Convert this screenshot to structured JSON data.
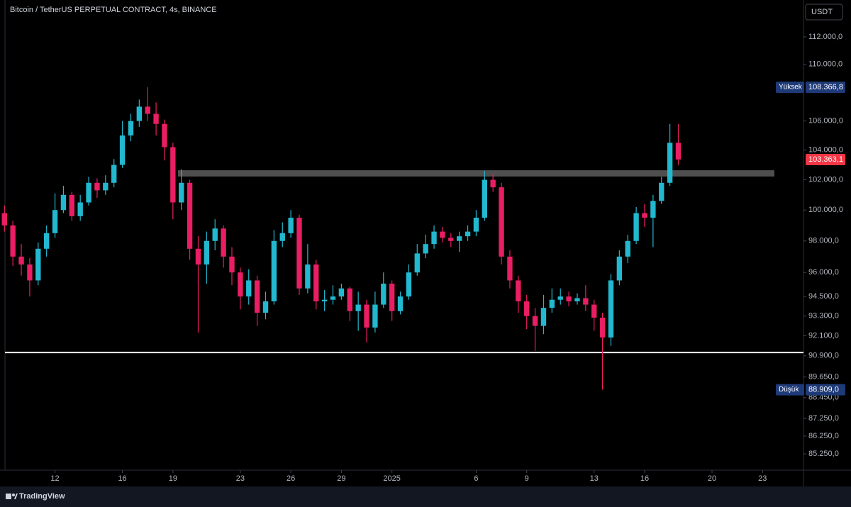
{
  "chart_data": {
    "type": "candlestick",
    "title": "Bitcoin / TetherUS PERPETUAL CONTRACT, 4s, BINANCE",
    "currency": "USDT",
    "brand": "TradingView",
    "log_scale": true,
    "up_color": "#22b8cf",
    "down_color": "#e91e63",
    "ylim": [
      84350,
      114736
    ],
    "yticks": [
      {
        "value": 112000,
        "label": "112.000,0"
      },
      {
        "value": 110000,
        "label": "110.000,0"
      },
      {
        "value": 106000,
        "label": "106.000,0"
      },
      {
        "value": 104000,
        "label": "104.000,0"
      },
      {
        "value": 102000,
        "label": "102.000,0"
      },
      {
        "value": 100000,
        "label": "100.000,0"
      },
      {
        "value": 98000,
        "label": "98.000,0"
      },
      {
        "value": 96000,
        "label": "96.000,0"
      },
      {
        "value": 94500,
        "label": "94.500,0"
      },
      {
        "value": 93300,
        "label": "93.300,0"
      },
      {
        "value": 92100,
        "label": "92.100,0"
      },
      {
        "value": 90900,
        "label": "90.900,0"
      },
      {
        "value": 89650,
        "label": "89.650,0"
      },
      {
        "value": 88450,
        "label": "88.450,0"
      },
      {
        "value": 87250,
        "label": "87.250,0"
      },
      {
        "value": 86250,
        "label": "86.250,0"
      },
      {
        "value": 85250,
        "label": "85.250,0"
      }
    ],
    "xlim": [
      -2.97,
      44.43
    ],
    "xticks": [
      {
        "value": 0,
        "label": "12"
      },
      {
        "value": 4,
        "label": "16"
      },
      {
        "value": 7,
        "label": "19"
      },
      {
        "value": 11,
        "label": "23"
      },
      {
        "value": 14,
        "label": "26"
      },
      {
        "value": 17,
        "label": "29"
      },
      {
        "value": 20,
        "label": "2025"
      },
      {
        "value": 25,
        "label": "6"
      },
      {
        "value": 28,
        "label": "9"
      },
      {
        "value": 32,
        "label": "13"
      },
      {
        "value": 35,
        "label": "16"
      },
      {
        "value": 39,
        "label": "20"
      },
      {
        "value": 42,
        "label": "23"
      }
    ],
    "x": [
      -3,
      -2.5,
      -2,
      -1.5,
      -1,
      -0.5,
      0,
      0.5,
      1,
      1.5,
      2,
      2.5,
      3,
      3.5,
      4,
      4.5,
      5,
      5.5,
      6,
      6.5,
      7,
      7.5,
      8,
      8.5,
      9,
      9.5,
      10,
      10.5,
      11,
      11.5,
      12,
      12.5,
      13,
      13.5,
      14,
      14.5,
      15,
      15.5,
      16,
      16.5,
      17,
      17.5,
      18,
      18.5,
      19,
      19.5,
      20,
      20.5,
      21,
      21.5,
      22,
      22.5,
      23,
      23.5,
      24,
      24.5,
      25,
      25.5,
      26,
      26.5,
      27,
      27.5,
      28,
      28.5,
      29,
      29.5,
      30,
      30.5,
      31,
      31.5,
      32,
      32.5,
      33,
      33.5,
      34,
      34.5,
      35,
      35.5,
      36,
      36.5,
      37
    ],
    "open": [
      99800,
      99000,
      97000,
      96500,
      95500,
      97500,
      98500,
      100000,
      101000,
      99600,
      100500,
      101800,
      101300,
      101800,
      103000,
      105000,
      106000,
      107000,
      106500,
      105800,
      104200,
      100500,
      101800,
      97500,
      96500,
      98000,
      98800,
      97000,
      96000,
      94500,
      95500,
      93500,
      94200,
      98000,
      98500,
      99500,
      95000,
      96500,
      94200,
      94300,
      94500,
      95000,
      93600,
      94000,
      92600,
      94000,
      95300,
      93600,
      94500,
      96000,
      97200,
      97800,
      98600,
      98200,
      98000,
      98300,
      98600,
      99500,
      102000,
      101500,
      97000,
      95500,
      94200,
      93300,
      92700,
      93800,
      94300,
      94500,
      94200,
      94400,
      94000,
      93200,
      92000,
      95500,
      97000,
      98000,
      99800,
      99500,
      100600,
      101800,
      104500
    ],
    "high": [
      100300,
      99300,
      97800,
      96900,
      97900,
      99000,
      101100,
      101600,
      101200,
      101000,
      102200,
      102100,
      102300,
      103400,
      106000,
      106500,
      107500,
      108366.8,
      107300,
      106100,
      104500,
      102700,
      102000,
      98300,
      98600,
      99400,
      99000,
      97600,
      96300,
      96200,
      95800,
      94800,
      98700,
      99200,
      100000,
      99700,
      97800,
      96800,
      94900,
      95200,
      95300,
      95100,
      94800,
      94300,
      94800,
      96000,
      95500,
      94800,
      96500,
      97800,
      98400,
      99000,
      98900,
      98500,
      98600,
      99000,
      100000,
      102600,
      102400,
      101800,
      97400,
      95800,
      94600,
      93800,
      94600,
      95000,
      95000,
      94800,
      94700,
      95200,
      94300,
      93500,
      95900,
      97400,
      98400,
      100200,
      100400,
      101000,
      102200,
      105800,
      105800
    ],
    "low": [
      98600,
      96400,
      95800,
      94500,
      95200,
      97000,
      98200,
      99800,
      99300,
      99300,
      100300,
      100800,
      101000,
      101500,
      102800,
      104600,
      105600,
      106000,
      105000,
      103300,
      99400,
      100000,
      96800,
      92300,
      95300,
      97400,
      96300,
      95200,
      93700,
      94000,
      92700,
      93100,
      94000,
      97600,
      98200,
      94600,
      94700,
      93700,
      93600,
      94000,
      94300,
      93000,
      92400,
      91700,
      92300,
      93800,
      93000,
      93400,
      94300,
      95800,
      96900,
      97500,
      97900,
      97600,
      97300,
      98000,
      98300,
      99300,
      101200,
      96500,
      95000,
      93500,
      92500,
      91200,
      92200,
      93500,
      94000,
      93900,
      94000,
      93600,
      92400,
      88909,
      91500,
      95200,
      96600,
      97800,
      98900,
      97600,
      100400,
      101600,
      103000
    ],
    "close": [
      99000,
      97000,
      96500,
      95500,
      97500,
      98500,
      100000,
      101000,
      99600,
      100500,
      101800,
      101300,
      101800,
      103000,
      105000,
      106000,
      107000,
      106500,
      105800,
      104200,
      100500,
      101800,
      97500,
      96500,
      98000,
      98800,
      97000,
      96000,
      94500,
      95500,
      93500,
      94200,
      98000,
      98500,
      99500,
      95000,
      96500,
      94200,
      94300,
      94500,
      95000,
      93600,
      94000,
      92600,
      94000,
      95300,
      93600,
      94500,
      96000,
      97200,
      97800,
      98600,
      98200,
      98000,
      98300,
      98600,
      99500,
      102000,
      101500,
      97000,
      95500,
      94200,
      93300,
      92700,
      93800,
      94300,
      94500,
      94200,
      94400,
      94000,
      93200,
      92000,
      95500,
      97000,
      98000,
      99800,
      99500,
      100600,
      101800,
      104500,
      103363.1
    ],
    "support_line": 91100,
    "resistance_zone": {
      "x": [
        7.3,
        42.7
      ],
      "y": [
        102220,
        102640
      ]
    },
    "price_labels": [
      {
        "name": "Yüksek",
        "value": 108366.8,
        "label": "108.366,8",
        "color": "#1e3a78"
      },
      {
        "name": "Düşük",
        "value": 88909,
        "label": "88.909,0",
        "color": "#1e3a78"
      },
      {
        "value": 103363.1,
        "label": "103.363,1",
        "color": "#f23645"
      }
    ]
  }
}
